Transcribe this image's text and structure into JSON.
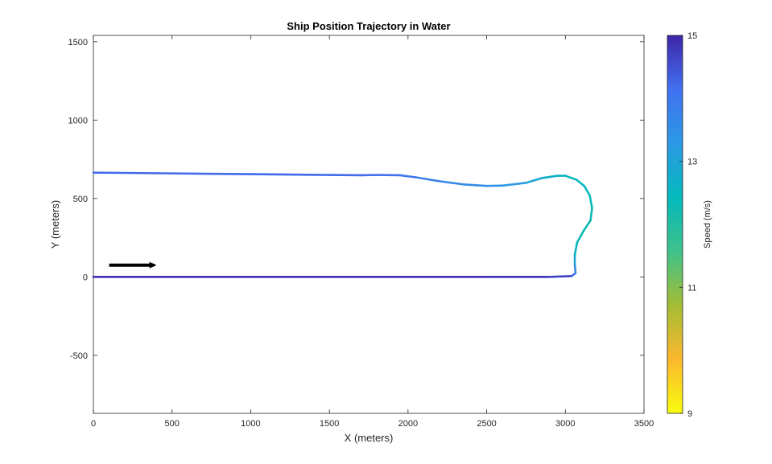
{
  "chart_data": {
    "type": "line",
    "title": "Ship Position Trajectory in Water",
    "xlabel": "X (meters)",
    "ylabel": "Y (meters)",
    "xlim": [
      0,
      3500
    ],
    "ylim": [
      -870,
      1540
    ],
    "xticks": [
      "0",
      "500",
      "1000",
      "1500",
      "2000",
      "2500",
      "3000",
      "3500"
    ],
    "xtick_values": [
      0,
      500,
      1000,
      1500,
      2000,
      2500,
      3000,
      3500
    ],
    "yticks": [
      "-500",
      "0",
      "500",
      "1000",
      "1500"
    ],
    "ytick_values": [
      -500,
      0,
      500,
      1000,
      1500
    ],
    "grid": false,
    "colorbar": {
      "label": "Speed  (m/s)",
      "range": [
        9,
        15
      ],
      "ticks": [
        "9",
        "11",
        "13",
        "15"
      ],
      "tick_values": [
        9,
        11,
        13,
        15
      ],
      "colormap": [
        "#f9fb0e",
        "#fbb82e",
        "#a4bd34",
        "#3fc28a",
        "#04b9bc",
        "#2c99e5",
        "#4170f0",
        "#3e26a8"
      ]
    },
    "arrow": {
      "from": [
        100,
        75
      ],
      "to": [
        380,
        75
      ],
      "color": "#000000"
    },
    "trajectory": [
      {
        "x": 0,
        "y": 0,
        "speed": 14.9
      },
      {
        "x": 500,
        "y": 0,
        "speed": 14.9
      },
      {
        "x": 1000,
        "y": 0,
        "speed": 14.9
      },
      {
        "x": 1500,
        "y": 0,
        "speed": 14.9
      },
      {
        "x": 2000,
        "y": 0,
        "speed": 14.9
      },
      {
        "x": 2500,
        "y": 0,
        "speed": 14.9
      },
      {
        "x": 2900,
        "y": 0,
        "speed": 14.8
      },
      {
        "x": 3040,
        "y": 5,
        "speed": 14.5
      },
      {
        "x": 3065,
        "y": 25,
        "speed": 14.0
      },
      {
        "x": 3060,
        "y": 80,
        "speed": 13.2
      },
      {
        "x": 3060,
        "y": 140,
        "speed": 12.7
      },
      {
        "x": 3075,
        "y": 220,
        "speed": 12.4
      },
      {
        "x": 3120,
        "y": 300,
        "speed": 12.3
      },
      {
        "x": 3160,
        "y": 360,
        "speed": 12.3
      },
      {
        "x": 3170,
        "y": 440,
        "speed": 12.3
      },
      {
        "x": 3155,
        "y": 520,
        "speed": 12.4
      },
      {
        "x": 3120,
        "y": 580,
        "speed": 12.4
      },
      {
        "x": 3070,
        "y": 620,
        "speed": 12.4
      },
      {
        "x": 3000,
        "y": 645,
        "speed": 12.5
      },
      {
        "x": 2950,
        "y": 645,
        "speed": 12.6
      },
      {
        "x": 2850,
        "y": 630,
        "speed": 12.8
      },
      {
        "x": 2750,
        "y": 600,
        "speed": 13.1
      },
      {
        "x": 2600,
        "y": 582,
        "speed": 13.4
      },
      {
        "x": 2500,
        "y": 580,
        "speed": 13.5
      },
      {
        "x": 2350,
        "y": 590,
        "speed": 13.6
      },
      {
        "x": 2200,
        "y": 610,
        "speed": 13.7
      },
      {
        "x": 2050,
        "y": 635,
        "speed": 13.9
      },
      {
        "x": 1950,
        "y": 648,
        "speed": 14.1
      },
      {
        "x": 1800,
        "y": 650,
        "speed": 14.2
      },
      {
        "x": 1700,
        "y": 648,
        "speed": 14.2
      },
      {
        "x": 1500,
        "y": 650,
        "speed": 14.2
      },
      {
        "x": 1000,
        "y": 655,
        "speed": 14.2
      },
      {
        "x": 500,
        "y": 660,
        "speed": 14.2
      },
      {
        "x": 0,
        "y": 665,
        "speed": 14.2
      }
    ]
  }
}
